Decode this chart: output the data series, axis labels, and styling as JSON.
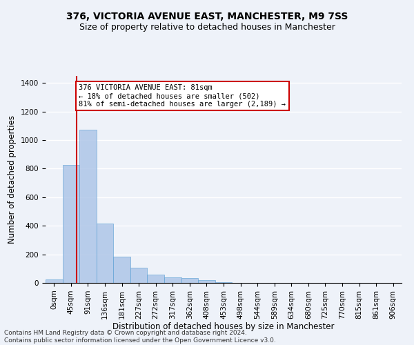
{
  "title": "376, VICTORIA AVENUE EAST, MANCHESTER, M9 7SS",
  "subtitle": "Size of property relative to detached houses in Manchester",
  "xlabel": "Distribution of detached houses by size in Manchester",
  "ylabel": "Number of detached properties",
  "bin_labels": [
    "0sqm",
    "45sqm",
    "91sqm",
    "136sqm",
    "181sqm",
    "227sqm",
    "272sqm",
    "317sqm",
    "362sqm",
    "408sqm",
    "453sqm",
    "498sqm",
    "544sqm",
    "589sqm",
    "634sqm",
    "680sqm",
    "725sqm",
    "770sqm",
    "815sqm",
    "861sqm",
    "906sqm"
  ],
  "bar_values": [
    25,
    825,
    1075,
    415,
    185,
    105,
    60,
    38,
    32,
    18,
    5,
    2,
    1,
    0,
    0,
    0,
    0,
    0,
    0,
    0,
    0
  ],
  "bar_color": "#aec6e8",
  "bar_edgecolor": "#5a9fd4",
  "bar_alpha": 0.85,
  "vline_x": 1.82,
  "vline_color": "#cc0000",
  "annotation_text": "376 VICTORIA AVENUE EAST: 81sqm\n← 18% of detached houses are smaller (502)\n81% of semi-detached houses are larger (2,189) →",
  "annotation_box_facecolor": "white",
  "annotation_box_edgecolor": "#cc0000",
  "ylim": [
    0,
    1450
  ],
  "yticks": [
    0,
    200,
    400,
    600,
    800,
    1000,
    1200,
    1400
  ],
  "footnote": "Contains HM Land Registry data © Crown copyright and database right 2024.\nContains public sector information licensed under the Open Government Licence v3.0.",
  "bg_color": "#eef2f9",
  "grid_color": "white",
  "title_fontsize": 10,
  "subtitle_fontsize": 9,
  "xlabel_fontsize": 8.5,
  "ylabel_fontsize": 8.5,
  "tick_fontsize": 7.5,
  "annotation_fontsize": 7.5,
  "footnote_fontsize": 6.5
}
